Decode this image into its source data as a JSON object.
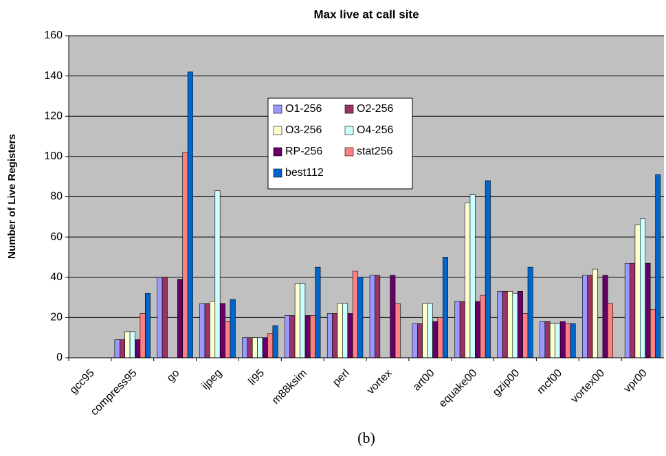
{
  "chart_data": {
    "type": "bar",
    "title": "Max live at call site",
    "ylabel": "Number of Live Registers",
    "caption": "(b)",
    "categories": [
      "gcc95",
      "compress95",
      "go",
      "ijpeg",
      "li95",
      "m88ksim",
      "perl",
      "vortex",
      "art00",
      "equake00",
      "gzip00",
      "mcf00",
      "vortex00",
      "vpr00"
    ],
    "series": [
      {
        "name": "O1-256",
        "color": "#9999ff",
        "values": [
          0,
          9,
          40,
          27,
          10,
          21,
          22,
          41,
          17,
          28,
          33,
          18,
          41,
          47
        ]
      },
      {
        "name": "O2-256",
        "color": "#993366",
        "values": [
          0,
          9,
          40,
          27,
          10,
          21,
          22,
          41,
          17,
          28,
          33,
          18,
          41,
          47
        ]
      },
      {
        "name": "O3-256",
        "color": "#ffffcc",
        "values": [
          0,
          13,
          0,
          28,
          10,
          37,
          27,
          0,
          27,
          77,
          33,
          17,
          44,
          66
        ]
      },
      {
        "name": "O4-256",
        "color": "#ccffff",
        "values": [
          0,
          13,
          0,
          83,
          10,
          37,
          27,
          0,
          27,
          81,
          32,
          17,
          0,
          69
        ]
      },
      {
        "name": "RP-256",
        "color": "#660066",
        "values": [
          0,
          9,
          39,
          27,
          10,
          21,
          22,
          41,
          18,
          28,
          33,
          18,
          41,
          47
        ]
      },
      {
        "name": "stat256",
        "color": "#ff8080",
        "values": [
          0,
          22,
          102,
          18,
          12,
          21,
          43,
          27,
          20,
          31,
          22,
          17,
          27,
          24
        ]
      },
      {
        "name": "best112",
        "color": "#0066cc",
        "values": [
          0,
          32,
          142,
          29,
          16,
          45,
          40,
          0,
          50,
          88,
          45,
          17,
          0,
          91
        ]
      }
    ],
    "ylim": [
      0,
      160
    ],
    "yticks": [
      0,
      20,
      40,
      60,
      80,
      100,
      120,
      140,
      160
    ],
    "grid": true
  }
}
